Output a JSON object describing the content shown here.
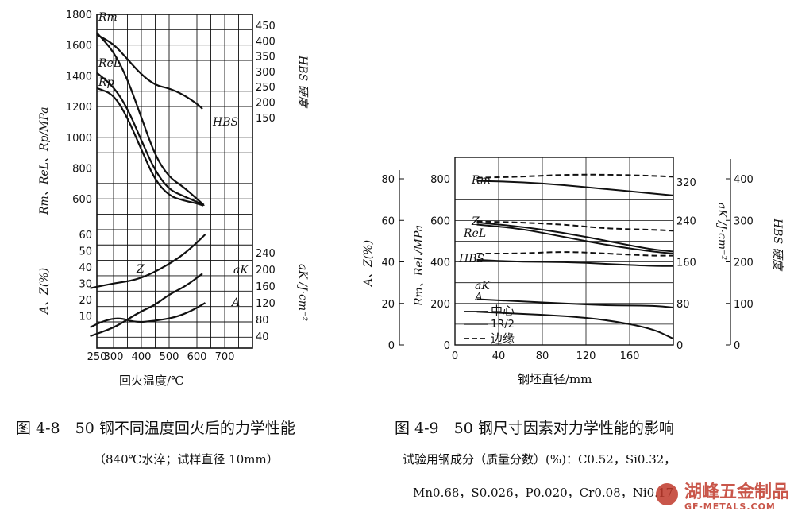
{
  "chart_data": [
    {
      "type": "line",
      "left_axis_upper": {
        "label": "Rm、ReL、Rp/MPa",
        "ticks": [
          "1800",
          "1600",
          "1400",
          "1200",
          "1000",
          "800",
          "600"
        ]
      },
      "left_axis_lower": {
        "label": "A、Z(%)",
        "ticks": [
          "60",
          "50",
          "40",
          "30",
          "20",
          "10"
        ]
      },
      "right_axis_upper": {
        "label": "HBS 硬度",
        "ticks": [
          "450",
          "400",
          "350",
          "300",
          "250",
          "200",
          "150"
        ]
      },
      "right_axis_lower": {
        "label": "aK /J·cm⁻²",
        "ticks": [
          "240",
          "200",
          "160",
          "120",
          "80",
          "40"
        ]
      },
      "x_axis": {
        "label": "回火温度/℃",
        "ticks": [
          "250",
          "300",
          "400",
          "500",
          "600",
          "700"
        ]
      },
      "curve_labels": {
        "rm": "Rm",
        "rel": "ReL",
        "rp": "Rp",
        "hbs": "HBS",
        "z": "Z",
        "ak": "aK",
        "a": "A"
      },
      "series": [
        {
          "name": "Rm",
          "x": [
            250,
            300,
            350,
            400,
            450,
            500,
            550,
            600,
            625
          ],
          "y": [
            1680,
            1560,
            1380,
            1130,
            880,
            740,
            680,
            600,
            560
          ]
        },
        {
          "name": "ReL",
          "x": [
            250,
            300,
            350,
            400,
            450,
            500,
            550,
            600,
            625
          ],
          "y": [
            1420,
            1330,
            1190,
            980,
            780,
            660,
            620,
            580,
            560
          ]
        },
        {
          "name": "Rp",
          "x": [
            250,
            300,
            350,
            400,
            450,
            500,
            550,
            600,
            625
          ],
          "y": [
            1320,
            1280,
            1130,
            920,
            720,
            620,
            590,
            570,
            555
          ]
        },
        {
          "name": "HBS",
          "x": [
            250,
            300,
            350,
            400,
            450,
            500,
            550,
            600,
            620
          ],
          "y": [
            420,
            390,
            340,
            290,
            255,
            245,
            225,
            195,
            178
          ]
        },
        {
          "name": "Z",
          "x": [
            230,
            300,
            380,
            450,
            520,
            560,
            600,
            630
          ],
          "y": [
            27,
            30,
            32,
            37,
            44,
            49,
            55,
            60
          ]
        },
        {
          "name": "aK",
          "x": [
            230,
            300,
            350,
            400,
            450,
            500,
            560,
            620
          ],
          "y": [
            40,
            60,
            80,
            100,
            115,
            140,
            160,
            190
          ]
        },
        {
          "name": "A",
          "x": [
            230,
            270,
            320,
            380,
            450,
            520,
            580,
            630
          ],
          "y": [
            3,
            7,
            9,
            6,
            7,
            9,
            13,
            18
          ]
        }
      ]
    },
    {
      "type": "line",
      "left_axis_outer": {
        "label": "A、Z(%)",
        "ticks": [
          "80",
          "60",
          "40",
          "20",
          "0"
        ]
      },
      "left_axis_inner": {
        "label": "Rm、ReL/MPa",
        "ticks": [
          "800",
          "600",
          "400",
          "200",
          "0"
        ]
      },
      "right_axis_inner": {
        "label": "aK /J·cm⁻²",
        "ticks": [
          "320",
          "240",
          "160",
          "80",
          "0"
        ]
      },
      "right_axis_outer": {
        "label": "HBS 硬度",
        "ticks": [
          "400",
          "300",
          "200",
          "100",
          "0"
        ]
      },
      "x_axis": {
        "label": "钢坯直径/mm",
        "ticks": [
          "0",
          "40",
          "80",
          "120",
          "160"
        ]
      },
      "curve_labels": {
        "rm": "Rm",
        "z": "Z",
        "rel": "ReL",
        "hbs": "HBS",
        "ak": "aK",
        "a": "A"
      },
      "legend": {
        "center": "中心",
        "half": "1R/2",
        "edge": "边缘"
      },
      "series_MPa": [
        {
          "name": "Rm 中心",
          "x": [
            20,
            60,
            100,
            140,
            180,
            200
          ],
          "y": [
            790,
            785,
            770,
            750,
            730,
            720
          ]
        },
        {
          "name": "Rm 边缘",
          "x": [
            20,
            60,
            100,
            140,
            180,
            200
          ],
          "y": [
            805,
            810,
            820,
            820,
            815,
            810
          ]
        },
        {
          "name": "ReL 中心",
          "x": [
            20,
            60,
            100,
            140,
            180,
            200
          ],
          "y": [
            580,
            560,
            520,
            480,
            450,
            440
          ]
        },
        {
          "name": "ReL 边缘",
          "x": [
            20,
            60,
            100,
            140,
            180,
            200
          ],
          "y": [
            595,
            590,
            580,
            560,
            555,
            550
          ]
        }
      ],
      "series_pct": [
        {
          "name": "Z 中心",
          "x": [
            20,
            60,
            100,
            140,
            180,
            200
          ],
          "y": [
            59,
            57,
            54,
            50,
            46,
            45
          ]
        },
        {
          "name": "HBS 中心",
          "x": [
            20,
            60,
            100,
            140,
            180,
            200
          ],
          "y": [
            41,
            40,
            40,
            39,
            38,
            38
          ]
        },
        {
          "name": "HBS 边缘",
          "x": [
            20,
            60,
            100,
            140,
            180,
            200
          ],
          "y": [
            44,
            44,
            45,
            44,
            43,
            43
          ]
        },
        {
          "name": "aK",
          "x": [
            20,
            60,
            100,
            140,
            180,
            200
          ],
          "y": [
            22,
            21,
            20,
            19,
            19,
            18
          ]
        },
        {
          "name": "A 中心",
          "x": [
            20,
            60,
            100,
            140,
            180,
            200
          ],
          "y": [
            16,
            15,
            14,
            12,
            8,
            3
          ]
        }
      ]
    }
  ],
  "captions": {
    "fig8_title": "图 4-8　50 钢不同温度回火后的力学性能",
    "fig8_sub": "（840℃水淬；试样直径 10mm）",
    "fig9_title": "图 4-9　50 钢尺寸因素对力学性能的影响",
    "fig9_sub1": "试验用钢成分（质量分数）(%)：C0.52，Si0.32，",
    "fig9_sub2": "Mn0.68，S0.026，P0.020，Cr0.08，Ni0.17"
  },
  "watermark": {
    "text": "湖峰五金制品",
    "url": "GF-METALS.COM"
  }
}
